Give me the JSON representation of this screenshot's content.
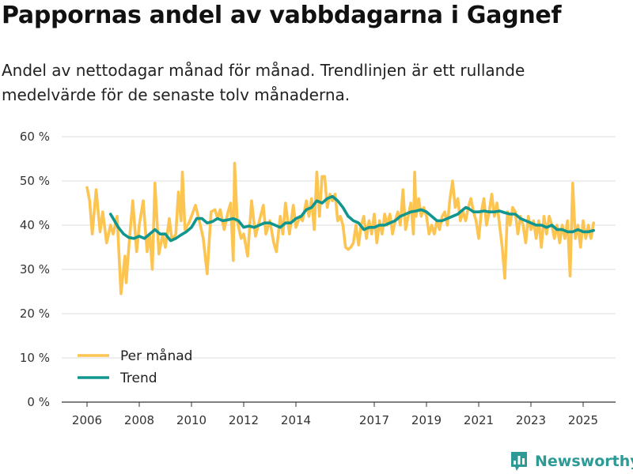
{
  "title": "Pappornas andel av vabbdagarna i Gagnef",
  "subtitle": "Andel av nettodagar månad för månad. Trendlinjen är ett rullande medelvärde för de senaste tolv månaderna.",
  "brand": {
    "name": "Newsworthy",
    "icon": "newsworthy-logo-icon",
    "color": "#2e9a96"
  },
  "colors": {
    "monthly": "#fcc451",
    "trend": "#10968e",
    "grid": "#dcdcdc",
    "axis": "#333333"
  },
  "chart_data": {
    "type": "line",
    "title": "Pappornas andel av vabbdagarna i Gagnef",
    "xlabel": "",
    "ylabel": "",
    "ylim": [
      0,
      60
    ],
    "xlim": [
      2005.5,
      2025.65
    ],
    "y_ticks": [
      0,
      10,
      20,
      30,
      40,
      50,
      60
    ],
    "y_tick_labels": [
      "0 %",
      "10 %",
      "20 %",
      "30 %",
      "40 %",
      "50 %",
      "60 %"
    ],
    "x_ticks": [
      2006,
      2008,
      2010,
      2012,
      2014,
      2017,
      2019,
      2021,
      2023,
      2025
    ],
    "x_tick_labels": [
      "2006",
      "2008",
      "2010",
      "2012",
      "2014",
      "2017",
      "2019",
      "2021",
      "2023",
      "2025"
    ],
    "grid": true,
    "legend_position": "bottom-left",
    "series": [
      {
        "name": "Per månad",
        "color": "#fcc451",
        "points": [
          [
            2006.0,
            48.5
          ],
          [
            2006.1,
            45.5
          ],
          [
            2006.2,
            38.0
          ],
          [
            2006.35,
            48.0
          ],
          [
            2006.5,
            38.5
          ],
          [
            2006.6,
            43.0
          ],
          [
            2006.75,
            36.0
          ],
          [
            2006.9,
            40.0
          ],
          [
            2007.0,
            38.0
          ],
          [
            2007.15,
            42.0
          ],
          [
            2007.3,
            24.5
          ],
          [
            2007.45,
            33.0
          ],
          [
            2007.5,
            27.0
          ],
          [
            2007.6,
            35.0
          ],
          [
            2007.75,
            45.5
          ],
          [
            2007.9,
            34.0
          ],
          [
            2008.0,
            40.0
          ],
          [
            2008.15,
            45.5
          ],
          [
            2008.3,
            34.0
          ],
          [
            2008.4,
            38.0
          ],
          [
            2008.5,
            30.0
          ],
          [
            2008.6,
            49.5
          ],
          [
            2008.75,
            33.5
          ],
          [
            2008.9,
            38.0
          ],
          [
            2009.0,
            35.0
          ],
          [
            2009.15,
            41.5
          ],
          [
            2009.25,
            36.5
          ],
          [
            2009.4,
            38.0
          ],
          [
            2009.5,
            47.5
          ],
          [
            2009.6,
            41.0
          ],
          [
            2009.65,
            52.0
          ],
          [
            2009.75,
            39.0
          ],
          [
            2009.9,
            40.5
          ],
          [
            2010.0,
            42.0
          ],
          [
            2010.15,
            44.5
          ],
          [
            2010.3,
            41.0
          ],
          [
            2010.45,
            37.0
          ],
          [
            2010.6,
            29.0
          ],
          [
            2010.75,
            43.0
          ],
          [
            2010.9,
            43.5
          ],
          [
            2011.0,
            41.5
          ],
          [
            2011.1,
            43.5
          ],
          [
            2011.25,
            39.0
          ],
          [
            2011.4,
            43.0
          ],
          [
            2011.5,
            45.0
          ],
          [
            2011.6,
            32.0
          ],
          [
            2011.65,
            54.0
          ],
          [
            2011.75,
            41.0
          ],
          [
            2011.9,
            37.0
          ],
          [
            2012.0,
            38.0
          ],
          [
            2012.15,
            33.0
          ],
          [
            2012.3,
            45.5
          ],
          [
            2012.45,
            37.5
          ],
          [
            2012.6,
            41.0
          ],
          [
            2012.75,
            44.5
          ],
          [
            2012.85,
            38.0
          ],
          [
            2013.0,
            41.0
          ],
          [
            2013.15,
            36.0
          ],
          [
            2013.25,
            34.0
          ],
          [
            2013.4,
            42.0
          ],
          [
            2013.5,
            38.0
          ],
          [
            2013.6,
            45.0
          ],
          [
            2013.75,
            38.0
          ],
          [
            2013.9,
            44.5
          ],
          [
            2014.0,
            39.5
          ],
          [
            2014.15,
            42.0
          ],
          [
            2014.25,
            41.0
          ],
          [
            2014.4,
            45.5
          ],
          [
            2014.5,
            42.0
          ],
          [
            2014.6,
            46.0
          ],
          [
            2014.7,
            39.0
          ],
          [
            2014.8,
            52.0
          ],
          [
            2014.9,
            42.0
          ],
          [
            2015.0,
            51.0
          ],
          [
            2015.1,
            51.0
          ],
          [
            2015.2,
            44.0
          ],
          [
            2015.3,
            47.0
          ],
          [
            2015.4,
            45.5
          ],
          [
            2015.5,
            47.0
          ],
          [
            2015.6,
            41.0
          ],
          [
            2015.7,
            42.0
          ],
          [
            2015.8,
            40.0
          ],
          [
            2015.9,
            35.0
          ],
          [
            2016.0,
            34.5
          ],
          [
            2016.1,
            35.0
          ],
          [
            2016.2,
            36.0
          ],
          [
            2016.3,
            40.0
          ],
          [
            2016.4,
            35.5
          ],
          [
            2016.5,
            40.0
          ],
          [
            2016.6,
            42.0
          ],
          [
            2016.7,
            37.0
          ],
          [
            2016.8,
            41.0
          ],
          [
            2016.9,
            38.0
          ],
          [
            2017.0,
            42.5
          ],
          [
            2017.1,
            36.0
          ],
          [
            2017.2,
            41.0
          ],
          [
            2017.3,
            38.0
          ],
          [
            2017.4,
            42.5
          ],
          [
            2017.5,
            40.0
          ],
          [
            2017.6,
            42.5
          ],
          [
            2017.7,
            38.0
          ],
          [
            2017.8,
            41.0
          ],
          [
            2017.9,
            43.0
          ],
          [
            2018.0,
            40.0
          ],
          [
            2018.1,
            48.0
          ],
          [
            2018.2,
            39.0
          ],
          [
            2018.3,
            42.0
          ],
          [
            2018.4,
            45.0
          ],
          [
            2018.5,
            38.0
          ],
          [
            2018.55,
            52.0
          ],
          [
            2018.6,
            42.0
          ],
          [
            2018.7,
            46.0
          ],
          [
            2018.8,
            42.0
          ],
          [
            2018.9,
            44.0
          ],
          [
            2019.0,
            42.0
          ],
          [
            2019.1,
            38.0
          ],
          [
            2019.2,
            40.0
          ],
          [
            2019.3,
            38.0
          ],
          [
            2019.4,
            41.0
          ],
          [
            2019.5,
            39.0
          ],
          [
            2019.6,
            42.0
          ],
          [
            2019.7,
            43.0
          ],
          [
            2019.8,
            40.0
          ],
          [
            2019.9,
            46.0
          ],
          [
            2020.0,
            50.0
          ],
          [
            2020.1,
            44.0
          ],
          [
            2020.2,
            46.0
          ],
          [
            2020.3,
            41.0
          ],
          [
            2020.4,
            43.0
          ],
          [
            2020.5,
            41.0
          ],
          [
            2020.6,
            44.0
          ],
          [
            2020.7,
            46.0
          ],
          [
            2020.8,
            43.0
          ],
          [
            2020.9,
            41.0
          ],
          [
            2021.0,
            37.0
          ],
          [
            2021.1,
            43.0
          ],
          [
            2021.2,
            46.0
          ],
          [
            2021.3,
            40.0
          ],
          [
            2021.4,
            43.0
          ],
          [
            2021.5,
            47.0
          ],
          [
            2021.6,
            42.0
          ],
          [
            2021.7,
            45.0
          ],
          [
            2021.8,
            40.0
          ],
          [
            2021.9,
            35.0
          ],
          [
            2022.0,
            28.0
          ],
          [
            2022.1,
            43.0
          ],
          [
            2022.2,
            40.0
          ],
          [
            2022.3,
            44.0
          ],
          [
            2022.4,
            43.0
          ],
          [
            2022.5,
            38.0
          ],
          [
            2022.6,
            42.0
          ],
          [
            2022.7,
            40.0
          ],
          [
            2022.8,
            36.0
          ],
          [
            2022.9,
            42.0
          ],
          [
            2023.0,
            39.0
          ],
          [
            2023.1,
            41.0
          ],
          [
            2023.2,
            37.0
          ],
          [
            2023.3,
            41.0
          ],
          [
            2023.4,
            35.0
          ],
          [
            2023.5,
            42.0
          ],
          [
            2023.6,
            38.0
          ],
          [
            2023.7,
            42.0
          ],
          [
            2023.8,
            40.0
          ],
          [
            2023.9,
            37.0
          ],
          [
            2024.0,
            40.0
          ],
          [
            2024.1,
            36.0
          ],
          [
            2024.2,
            40.0
          ],
          [
            2024.3,
            37.0
          ],
          [
            2024.4,
            41.0
          ],
          [
            2024.5,
            28.5
          ],
          [
            2024.6,
            49.5
          ],
          [
            2024.7,
            37.0
          ],
          [
            2024.8,
            40.0
          ],
          [
            2024.9,
            35.0
          ],
          [
            2025.0,
            41.0
          ],
          [
            2025.1,
            37.0
          ],
          [
            2025.2,
            40.0
          ],
          [
            2025.3,
            37.0
          ],
          [
            2025.4,
            40.5
          ]
        ]
      },
      {
        "name": "Trend",
        "color": "#10968e",
        "points": [
          [
            2006.9,
            42.5
          ],
          [
            2007.0,
            41.5
          ],
          [
            2007.2,
            39.5
          ],
          [
            2007.4,
            38.0
          ],
          [
            2007.6,
            37.2
          ],
          [
            2007.8,
            37.0
          ],
          [
            2008.0,
            37.5
          ],
          [
            2008.2,
            37.0
          ],
          [
            2008.4,
            38.0
          ],
          [
            2008.6,
            39.0
          ],
          [
            2008.8,
            38.0
          ],
          [
            2009.0,
            38.0
          ],
          [
            2009.2,
            36.5
          ],
          [
            2009.4,
            37.0
          ],
          [
            2009.6,
            37.8
          ],
          [
            2009.8,
            38.5
          ],
          [
            2010.0,
            39.5
          ],
          [
            2010.2,
            41.5
          ],
          [
            2010.4,
            41.5
          ],
          [
            2010.6,
            40.5
          ],
          [
            2010.8,
            40.8
          ],
          [
            2011.0,
            41.5
          ],
          [
            2011.2,
            41.0
          ],
          [
            2011.4,
            41.2
          ],
          [
            2011.6,
            41.5
          ],
          [
            2011.8,
            41.0
          ],
          [
            2012.0,
            39.5
          ],
          [
            2012.2,
            39.8
          ],
          [
            2012.4,
            39.5
          ],
          [
            2012.6,
            40.0
          ],
          [
            2012.8,
            40.5
          ],
          [
            2013.0,
            40.5
          ],
          [
            2013.2,
            40.0
          ],
          [
            2013.4,
            39.5
          ],
          [
            2013.6,
            40.5
          ],
          [
            2013.8,
            40.5
          ],
          [
            2014.0,
            41.5
          ],
          [
            2014.2,
            42.0
          ],
          [
            2014.4,
            43.5
          ],
          [
            2014.6,
            44.0
          ],
          [
            2014.8,
            45.5
          ],
          [
            2015.0,
            45.0
          ],
          [
            2015.2,
            46.0
          ],
          [
            2015.4,
            46.5
          ],
          [
            2015.6,
            45.5
          ],
          [
            2015.8,
            44.0
          ],
          [
            2016.0,
            42.0
          ],
          [
            2016.2,
            41.0
          ],
          [
            2016.4,
            40.5
          ],
          [
            2016.6,
            39.0
          ],
          [
            2016.8,
            39.5
          ],
          [
            2017.0,
            39.5
          ],
          [
            2017.2,
            40.0
          ],
          [
            2017.4,
            40.0
          ],
          [
            2017.6,
            40.5
          ],
          [
            2017.8,
            41.0
          ],
          [
            2018.0,
            42.0
          ],
          [
            2018.2,
            42.5
          ],
          [
            2018.4,
            43.0
          ],
          [
            2018.6,
            43.2
          ],
          [
            2018.8,
            43.5
          ],
          [
            2019.0,
            43.0
          ],
          [
            2019.2,
            42.0
          ],
          [
            2019.4,
            41.0
          ],
          [
            2019.6,
            41.0
          ],
          [
            2019.8,
            41.5
          ],
          [
            2020.0,
            42.0
          ],
          [
            2020.2,
            42.5
          ],
          [
            2020.4,
            43.5
          ],
          [
            2020.5,
            44.0
          ],
          [
            2020.6,
            43.8
          ],
          [
            2020.8,
            43.0
          ],
          [
            2021.0,
            43.0
          ],
          [
            2021.2,
            43.2
          ],
          [
            2021.4,
            43.0
          ],
          [
            2021.6,
            43.0
          ],
          [
            2021.8,
            43.2
          ],
          [
            2022.0,
            42.8
          ],
          [
            2022.2,
            42.5
          ],
          [
            2022.4,
            42.5
          ],
          [
            2022.6,
            41.5
          ],
          [
            2022.8,
            41.0
          ],
          [
            2023.0,
            40.5
          ],
          [
            2023.2,
            40.0
          ],
          [
            2023.4,
            40.0
          ],
          [
            2023.6,
            39.5
          ],
          [
            2023.8,
            40.0
          ],
          [
            2024.0,
            39.0
          ],
          [
            2024.2,
            39.0
          ],
          [
            2024.4,
            38.5
          ],
          [
            2024.6,
            38.5
          ],
          [
            2024.8,
            39.0
          ],
          [
            2025.0,
            38.5
          ],
          [
            2025.2,
            38.5
          ],
          [
            2025.4,
            38.8
          ]
        ]
      }
    ]
  }
}
